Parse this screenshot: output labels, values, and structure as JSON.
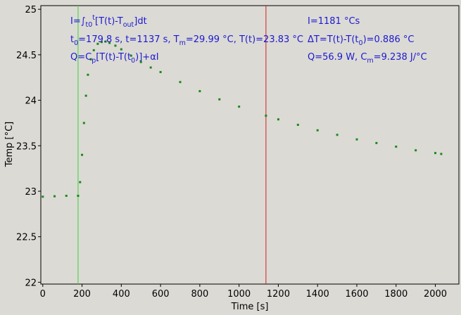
{
  "chart_data": {
    "type": "scatter",
    "xlabel": "Time [s]",
    "ylabel": "Temp [°C]",
    "xlim": [
      -10,
      2120
    ],
    "ylim": [
      21.98,
      25.04
    ],
    "x_ticks": [
      0,
      200,
      400,
      600,
      800,
      1000,
      1200,
      1400,
      1600,
      1800,
      2000
    ],
    "y_ticks": [
      22,
      22.5,
      23,
      23.5,
      24,
      24.5,
      25
    ],
    "y_tick_labels": [
      "22",
      "22.5",
      "23",
      "23.5",
      "24",
      "24.5",
      "25"
    ],
    "grid": false,
    "series": [
      {
        "color": "#1a8a1a",
        "points": [
          [
            0,
            22.94
          ],
          [
            60,
            22.945
          ],
          [
            120,
            22.95
          ],
          [
            179.8,
            22.95
          ],
          [
            190,
            23.1
          ],
          [
            200,
            23.4
          ],
          [
            210,
            23.75
          ],
          [
            220,
            24.05
          ],
          [
            230,
            24.28
          ],
          [
            245,
            24.45
          ],
          [
            260,
            24.55
          ],
          [
            280,
            24.62
          ],
          [
            300,
            24.64
          ],
          [
            320,
            24.645
          ],
          [
            340,
            24.63
          ],
          [
            370,
            24.6
          ],
          [
            400,
            24.56
          ],
          [
            450,
            24.49
          ],
          [
            500,
            24.42
          ],
          [
            550,
            24.36
          ],
          [
            600,
            24.31
          ],
          [
            700,
            24.2
          ],
          [
            800,
            24.1
          ],
          [
            900,
            24.01
          ],
          [
            1000,
            23.93
          ],
          [
            1137,
            23.83
          ],
          [
            1200,
            23.79
          ],
          [
            1300,
            23.73
          ],
          [
            1400,
            23.67
          ],
          [
            1500,
            23.62
          ],
          [
            1600,
            23.57
          ],
          [
            1700,
            23.53
          ],
          [
            1800,
            23.49
          ],
          [
            1900,
            23.45
          ],
          [
            2000,
            23.42
          ],
          [
            2030,
            23.41
          ]
        ]
      }
    ],
    "vlines": [
      {
        "x": 179.8,
        "color": "#3ad43a"
      },
      {
        "x": 1137,
        "color": "#d42020"
      }
    ],
    "annotations": {
      "left": {
        "line1": {
          "t1": "I=∫",
          "s1": "t0",
          "s2": "t",
          "t2": "[T(t)-T",
          "s3": "out",
          "t3": "]dt"
        },
        "line2": {
          "t1": "t",
          "s1": "0",
          "t2": "=179.8 s,   t=1137 s,   T",
          "s2": "m",
          "t3": "=29.99 °C,  T(t)=23.83 °C"
        },
        "line3": {
          "t1": "Q=C",
          "s1": "p",
          "t2": "[T(t)-T(t",
          "s2": "0",
          "t3": ")]+αI"
        }
      },
      "right": {
        "line1": {
          "t1": "I=1181 °Cs"
        },
        "line2": {
          "t1": "ΔT=T(t)-T(t",
          "s1": "0",
          "t2": ")=0.886 °C"
        },
        "line3": {
          "t1": "Q=56.9 W,   C",
          "s1": "m",
          "t2": "=9.238 J/°C"
        }
      }
    }
  }
}
